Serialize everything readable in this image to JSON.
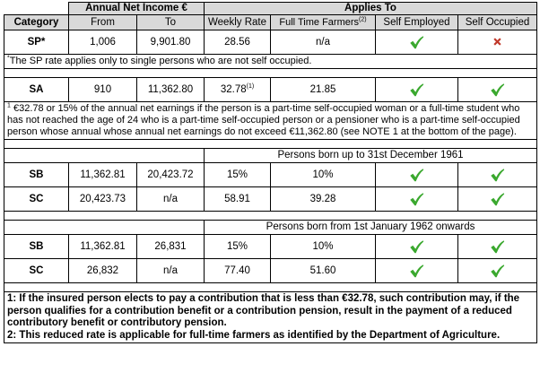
{
  "header": {
    "annual_net_income": "Annual Net Income €",
    "applies_to": "Applies To",
    "category": "Category",
    "from": "From",
    "to": "To",
    "weekly_rate": "Weekly Rate",
    "full_time_farmers": "Full Time Farmers",
    "full_time_farmers_sup": "(2)",
    "self_employed": "Self Employed",
    "self_occupied": "Self Occupied"
  },
  "sp": {
    "category": "SP*",
    "from": "1,006",
    "to": "9,901.80",
    "weekly_rate": "28.56",
    "full_time_farmers": "n/a",
    "self_employed": "check",
    "self_occupied": "cross",
    "note_marker": "*",
    "note": "The SP rate applies only to single persons who are not self occupied."
  },
  "sa": {
    "category": "SA",
    "from": "910",
    "to": "11,362.80",
    "weekly_rate": "32.78",
    "weekly_rate_sup": "(1)",
    "full_time_farmers": "21.85",
    "self_employed": "check",
    "self_occupied": "check",
    "note_marker": "1",
    "note": "€32.78 or 15% of the annual net earnings if the person is a part-time self-occupied woman or a full-time student who has not reached the age of 24 who is a part-time self-occupied person or a pensioner who is a part-time self-occupied person whose annual whose annual net earnings do not exceed €11,362.80 (see NOTE 1 at the bottom of the page)."
  },
  "section1": {
    "title": "Persons born up to 31st December 1961",
    "rows": [
      {
        "category": "SB",
        "from": "11,362.81",
        "to": "20,423.72",
        "weekly_rate": "15%",
        "full_time_farmers": "10%",
        "self_employed": "check",
        "self_occupied": "check"
      },
      {
        "category": "SC",
        "from": "20,423.73",
        "to": "n/a",
        "weekly_rate": "58.91",
        "full_time_farmers": "39.28",
        "self_employed": "check",
        "self_occupied": "check"
      }
    ]
  },
  "section2": {
    "title": "Persons born from 1st January 1962 onwards",
    "rows": [
      {
        "category": "SB",
        "from": "11,362.81",
        "to": "26,831",
        "weekly_rate": "15%",
        "full_time_farmers": "10%",
        "self_employed": "check",
        "self_occupied": "check"
      },
      {
        "category": "SC",
        "from": "26,832",
        "to": "n/a",
        "weekly_rate": "77.40",
        "full_time_farmers": "51.60",
        "self_employed": "check",
        "self_occupied": "check"
      }
    ]
  },
  "footnotes": {
    "note1": "1: If the insured person elects to pay a contribution that is less than €32.78, such contribution may, if the person qualifies for a contribution benefit or a contribution pension, result in the payment of a reduced contributory benefit or contributory pension.",
    "note2": "2: This reduced rate is applicable for full-time farmers as identified by the Department of Agriculture."
  },
  "colors": {
    "header_bg": "#d9d9d9",
    "check": "#3aa82e",
    "cross": "#c0392b"
  }
}
